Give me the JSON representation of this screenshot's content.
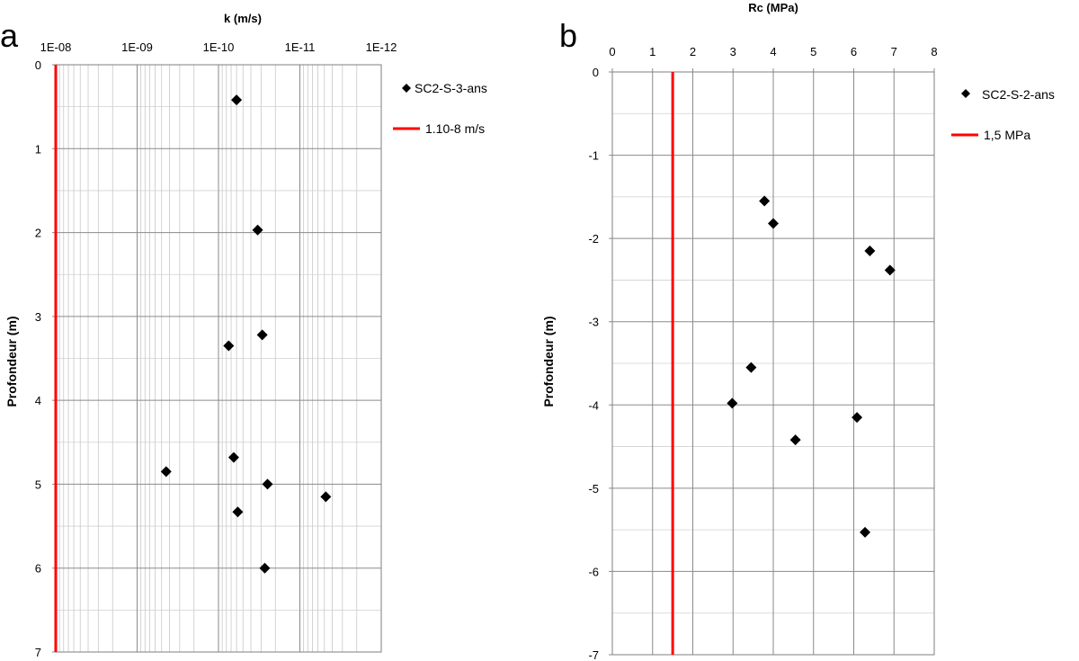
{
  "chart_data": [
    {
      "panel_letter": "a",
      "type": "scatter",
      "title": "k (m/s)",
      "xlabel": "k (m/s)",
      "ylabel": "Profondeur  (m)",
      "x_scale": "log",
      "x_reversed": true,
      "x_axis_position": "top",
      "xlim": [
        1e-12,
        1e-08
      ],
      "x_ticks": [
        1e-08,
        1e-09,
        1e-10,
        1e-11,
        1e-12
      ],
      "x_tick_labels": [
        "1E-08",
        "1E-09",
        "1E-10",
        "1E-11",
        "1E-12"
      ],
      "ylim": [
        0,
        7
      ],
      "y_reversed": true,
      "y_ticks": [
        0,
        1,
        2,
        3,
        4,
        5,
        6,
        7
      ],
      "y_tick_labels": [
        "0",
        "1",
        "2",
        "3",
        "4",
        "5",
        "6",
        "7"
      ],
      "grid": true,
      "legend_position": "top-right",
      "series": [
        {
          "name": "SC2-S-3-ans",
          "marker": "diamond",
          "color": "#000000",
          "points": [
            {
              "x": 6e-11,
              "y": 0.42
            },
            {
              "x": 3.3e-11,
              "y": 1.97
            },
            {
              "x": 2.9e-11,
              "y": 3.22
            },
            {
              "x": 7.5e-11,
              "y": 3.35
            },
            {
              "x": 6.5e-11,
              "y": 4.68
            },
            {
              "x": 4.4e-10,
              "y": 4.85
            },
            {
              "x": 2.5e-11,
              "y": 5.0
            },
            {
              "x": 4.8e-12,
              "y": 5.15
            },
            {
              "x": 5.8e-11,
              "y": 5.33
            },
            {
              "x": 2.7e-11,
              "y": 6.0
            }
          ]
        },
        {
          "name": "1.10-8 m/s",
          "type": "line",
          "color": "#ff0000",
          "x_constant": 1e-08
        }
      ]
    },
    {
      "panel_letter": "b",
      "type": "scatter",
      "title": "Rc (MPa)",
      "xlabel": "Rc (MPa)",
      "ylabel": "Profondeur (m)",
      "x_axis_position": "top",
      "xlim": [
        0,
        8
      ],
      "x_ticks": [
        0,
        1,
        2,
        3,
        4,
        5,
        6,
        7,
        8
      ],
      "x_tick_labels": [
        "0",
        "1",
        "2",
        "3",
        "4",
        "5",
        "6",
        "7",
        "8"
      ],
      "ylim": [
        -7,
        0
      ],
      "y_ticks": [
        0,
        -1,
        -2,
        -3,
        -4,
        -5,
        -6,
        -7
      ],
      "y_tick_labels": [
        "0",
        "-1",
        "-2",
        "-3",
        "-4",
        "-5",
        "-6",
        "-7"
      ],
      "grid": true,
      "legend_position": "top-right",
      "series": [
        {
          "name": "SC2-S-2-ans",
          "marker": "diamond",
          "color": "#000000",
          "points": [
            {
              "x": 3.78,
              "y": -1.55
            },
            {
              "x": 4.0,
              "y": -1.82
            },
            {
              "x": 6.4,
              "y": -2.15
            },
            {
              "x": 6.9,
              "y": -2.38
            },
            {
              "x": 3.45,
              "y": -3.55
            },
            {
              "x": 2.98,
              "y": -3.98
            },
            {
              "x": 6.08,
              "y": -4.15
            },
            {
              "x": 4.55,
              "y": -4.42
            },
            {
              "x": 6.28,
              "y": -5.53
            }
          ]
        },
        {
          "name": "1,5 MPa",
          "type": "line",
          "color": "#ff0000",
          "x_constant": 1.5
        }
      ]
    }
  ]
}
